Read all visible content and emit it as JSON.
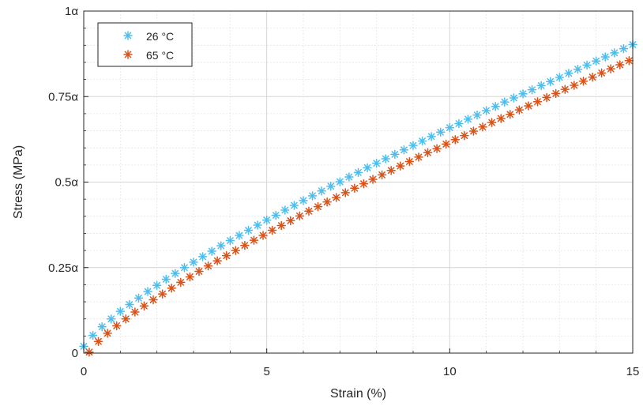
{
  "chart_data": {
    "type": "scatter",
    "xlabel": "Strain (%)",
    "ylabel": "Stress (MPa)",
    "xlim": [
      0,
      15
    ],
    "ylim": [
      0,
      1
    ],
    "x_ticks": [
      0,
      5,
      10,
      15
    ],
    "x_tick_labels": [
      "0",
      "5",
      "10",
      "15"
    ],
    "y_ticks": [
      0,
      0.25,
      0.5,
      0.75,
      1
    ],
    "y_tick_labels": [
      "0",
      "0.25α",
      "0.5α",
      "0.75α",
      "1α"
    ],
    "grid": true,
    "minor_grid": true,
    "legend_position": "top-left",
    "marker": "asterisk",
    "series": [
      {
        "name": "26 °C",
        "color": "#4DBEEE",
        "x": [
          0,
          0.25,
          0.5,
          0.75,
          1,
          1.25,
          1.5,
          1.75,
          2,
          2.25,
          2.5,
          2.75,
          3,
          3.25,
          3.5,
          3.75,
          4,
          4.25,
          4.5,
          4.75,
          5,
          5.25,
          5.5,
          5.75,
          6,
          6.25,
          6.5,
          6.75,
          7,
          7.25,
          7.5,
          7.75,
          8,
          8.25,
          8.5,
          8.75,
          9,
          9.25,
          9.5,
          9.75,
          10,
          10.25,
          10.5,
          10.75,
          11,
          11.25,
          11.5,
          11.75,
          12,
          12.25,
          12.5,
          12.75,
          13,
          13.25,
          13.5,
          13.75,
          14,
          14.25,
          14.5,
          14.75,
          15
        ],
        "y": [
          0.02,
          0.052,
          0.077,
          0.1,
          0.122,
          0.142,
          0.161,
          0.18,
          0.198,
          0.216,
          0.233,
          0.25,
          0.266,
          0.282,
          0.298,
          0.314,
          0.329,
          0.344,
          0.359,
          0.374,
          0.389,
          0.403,
          0.418,
          0.432,
          0.446,
          0.46,
          0.474,
          0.488,
          0.501,
          0.515,
          0.528,
          0.542,
          0.555,
          0.568,
          0.581,
          0.594,
          0.607,
          0.62,
          0.633,
          0.646,
          0.659,
          0.671,
          0.684,
          0.696,
          0.709,
          0.721,
          0.734,
          0.746,
          0.758,
          0.77,
          0.782,
          0.794,
          0.806,
          0.818,
          0.83,
          0.842,
          0.854,
          0.866,
          0.878,
          0.89,
          0.902
        ]
      },
      {
        "name": "65 °C",
        "color": "#D95319",
        "x": [
          0.15,
          0.4,
          0.65,
          0.9,
          1.15,
          1.4,
          1.65,
          1.9,
          2.15,
          2.4,
          2.65,
          2.9,
          3.15,
          3.4,
          3.65,
          3.9,
          4.15,
          4.4,
          4.65,
          4.9,
          5.15,
          5.4,
          5.65,
          5.9,
          6.15,
          6.4,
          6.65,
          6.9,
          7.15,
          7.4,
          7.65,
          7.9,
          8.15,
          8.4,
          8.65,
          8.9,
          9.15,
          9.4,
          9.65,
          9.9,
          10.15,
          10.4,
          10.65,
          10.9,
          11.15,
          11.4,
          11.65,
          11.9,
          12.15,
          12.4,
          12.65,
          12.9,
          13.15,
          13.4,
          13.65,
          13.9,
          14.15,
          14.4,
          14.65,
          14.9
        ],
        "y": [
          0.003,
          0.034,
          0.058,
          0.08,
          0.1,
          0.12,
          0.138,
          0.156,
          0.173,
          0.19,
          0.207,
          0.223,
          0.239,
          0.255,
          0.27,
          0.285,
          0.3,
          0.315,
          0.33,
          0.344,
          0.359,
          0.373,
          0.387,
          0.401,
          0.415,
          0.428,
          0.442,
          0.455,
          0.469,
          0.482,
          0.495,
          0.508,
          0.521,
          0.534,
          0.547,
          0.56,
          0.573,
          0.586,
          0.598,
          0.611,
          0.624,
          0.636,
          0.649,
          0.661,
          0.674,
          0.686,
          0.698,
          0.711,
          0.723,
          0.735,
          0.747,
          0.759,
          0.771,
          0.783,
          0.795,
          0.807,
          0.819,
          0.831,
          0.843,
          0.855
        ]
      }
    ]
  }
}
